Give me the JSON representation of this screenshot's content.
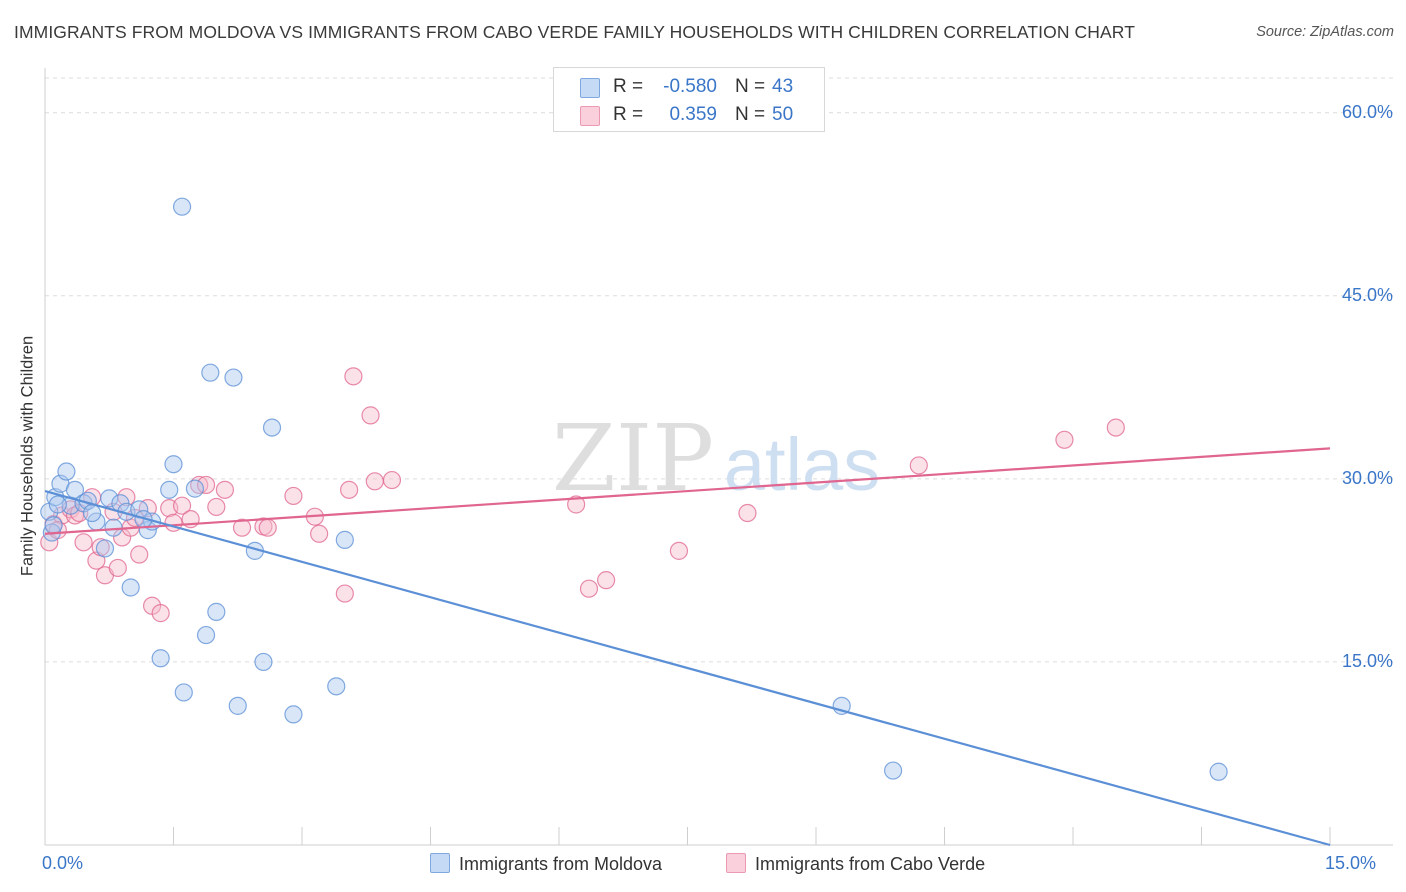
{
  "title": "IMMIGRANTS FROM MOLDOVA VS IMMIGRANTS FROM CABO VERDE FAMILY HOUSEHOLDS WITH CHILDREN CORRELATION CHART",
  "source": "Source: ZipAtlas.com",
  "watermark": {
    "zip": "ZIP",
    "atlas": "atlas"
  },
  "legend": [
    {
      "r_label": "R =",
      "r_value": "-0.580",
      "n_label": "N =",
      "n_value": "43",
      "color": "#aac8ef"
    },
    {
      "r_label": "R =",
      "r_value": "0.359",
      "n_label": "N =",
      "n_value": "50",
      "color": "#f6bccd"
    }
  ],
  "chart_data": {
    "type": "scatter",
    "ylabel": "Family Households with Children",
    "xlim": [
      0,
      15
    ],
    "ylim": [
      0,
      63.5
    ],
    "x_tick_labels": [
      "0.0%",
      "15.0%"
    ],
    "y_ticks": [
      15,
      30,
      45,
      60
    ],
    "y_tick_labels": [
      "15.0%",
      "30.0%",
      "45.0%",
      "60.0%"
    ],
    "grid": true,
    "series": [
      {
        "name": "Immigrants from Moldova",
        "color": "#5b8fd6",
        "fill": "#aac8ef",
        "trend": {
          "x": [
            0,
            15
          ],
          "y": [
            29.0,
            0
          ]
        },
        "points": [
          [
            0.05,
            27.3
          ],
          [
            0.08,
            25.6
          ],
          [
            0.1,
            26.2
          ],
          [
            0.12,
            28.5
          ],
          [
            0.18,
            29.6
          ],
          [
            0.25,
            30.6
          ],
          [
            0.3,
            27.8
          ],
          [
            0.35,
            29.1
          ],
          [
            0.45,
            28.0
          ],
          [
            0.5,
            28.2
          ],
          [
            0.6,
            26.5
          ],
          [
            0.7,
            24.3
          ],
          [
            0.75,
            28.4
          ],
          [
            0.8,
            26.0
          ],
          [
            0.88,
            28.0
          ],
          [
            0.95,
            27.3
          ],
          [
            1.0,
            21.1
          ],
          [
            1.1,
            27.5
          ],
          [
            1.2,
            25.8
          ],
          [
            1.25,
            26.5
          ],
          [
            1.35,
            15.3
          ],
          [
            1.45,
            29.1
          ],
          [
            1.5,
            31.2
          ],
          [
            1.6,
            52.3
          ],
          [
            1.62,
            12.5
          ],
          [
            1.75,
            29.2
          ],
          [
            1.88,
            17.2
          ],
          [
            1.93,
            38.7
          ],
          [
            2.0,
            19.1
          ],
          [
            2.2,
            38.3
          ],
          [
            2.25,
            11.4
          ],
          [
            2.45,
            24.1
          ],
          [
            2.55,
            15.0
          ],
          [
            2.65,
            34.2
          ],
          [
            2.9,
            10.7
          ],
          [
            3.4,
            13.0
          ],
          [
            3.5,
            25.0
          ],
          [
            9.3,
            11.4
          ],
          [
            9.9,
            6.1
          ],
          [
            13.7,
            6.0
          ],
          [
            0.15,
            27.9
          ],
          [
            1.15,
            26.7
          ],
          [
            0.55,
            27.2
          ]
        ]
      },
      {
        "name": "Immigrants from Cabo Verde",
        "color": "#e0658f",
        "fill": "#f6bccd",
        "trend": {
          "x": [
            0,
            15
          ],
          "y": [
            25.5,
            32.5
          ]
        },
        "points": [
          [
            0.05,
            24.8
          ],
          [
            0.1,
            26.3
          ],
          [
            0.2,
            27.0
          ],
          [
            0.3,
            27.5
          ],
          [
            0.35,
            27.0
          ],
          [
            0.45,
            24.8
          ],
          [
            0.55,
            28.5
          ],
          [
            0.6,
            23.3
          ],
          [
            0.65,
            24.4
          ],
          [
            0.7,
            22.1
          ],
          [
            0.8,
            27.3
          ],
          [
            0.85,
            22.7
          ],
          [
            0.9,
            25.2
          ],
          [
            0.95,
            28.5
          ],
          [
            1.0,
            26.0
          ],
          [
            1.1,
            23.8
          ],
          [
            1.2,
            27.6
          ],
          [
            1.25,
            19.6
          ],
          [
            1.35,
            19.0
          ],
          [
            1.45,
            27.6
          ],
          [
            1.6,
            27.8
          ],
          [
            1.7,
            26.7
          ],
          [
            1.8,
            29.5
          ],
          [
            1.88,
            29.5
          ],
          [
            2.0,
            27.7
          ],
          [
            2.1,
            29.1
          ],
          [
            2.3,
            26.0
          ],
          [
            2.55,
            26.1
          ],
          [
            2.9,
            28.6
          ],
          [
            3.15,
            26.9
          ],
          [
            3.2,
            25.5
          ],
          [
            3.5,
            20.6
          ],
          [
            3.55,
            29.1
          ],
          [
            3.6,
            38.4
          ],
          [
            3.8,
            35.2
          ],
          [
            3.85,
            29.8
          ],
          [
            4.05,
            29.9
          ],
          [
            6.2,
            27.9
          ],
          [
            6.35,
            21.0
          ],
          [
            6.55,
            21.7
          ],
          [
            7.4,
            24.1
          ],
          [
            8.2,
            27.2
          ],
          [
            10.2,
            31.1
          ],
          [
            11.9,
            33.2
          ],
          [
            12.5,
            34.2
          ],
          [
            0.15,
            25.8
          ],
          [
            0.4,
            27.2
          ],
          [
            1.05,
            26.8
          ],
          [
            2.6,
            26.0
          ],
          [
            1.5,
            26.4
          ]
        ]
      }
    ]
  }
}
